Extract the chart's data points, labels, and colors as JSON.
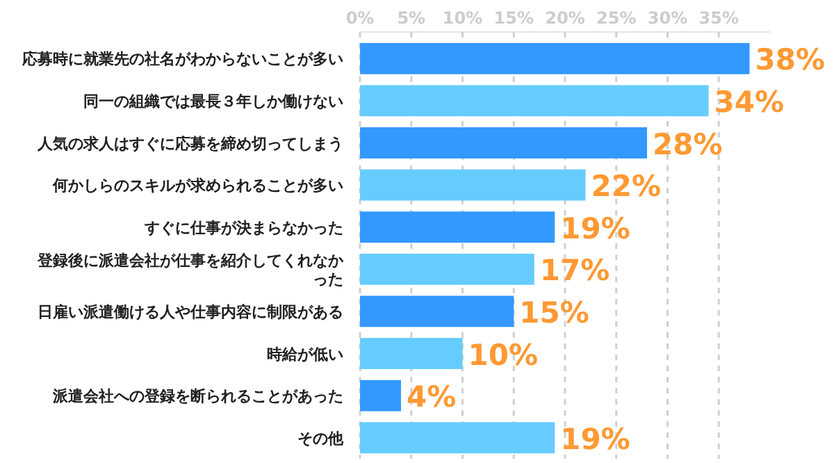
{
  "chart_data": {
    "type": "bar",
    "orientation": "horizontal",
    "categories": [
      "応募時に就業先の社名がわからないことが多い",
      "同一の組織では最長３年しか働けない",
      "人気の求人はすぐに応募を締め切ってしまう",
      "何かしらのスキルが求められることが多い",
      "すぐに仕事が決まらなかった",
      "登録後に派遣会社が仕事を紹介してくれなかった",
      "日雇い派遣働ける人や仕事内容に制限がある",
      "時給が低い",
      "派遣会社への登録を断られることがあった",
      "その他"
    ],
    "values": [
      38,
      34,
      28,
      22,
      19,
      17,
      15,
      10,
      4,
      19
    ],
    "colors": [
      "#3399ff",
      "#66ccff",
      "#3399ff",
      "#66ccff",
      "#3399ff",
      "#66ccff",
      "#3399ff",
      "#66ccff",
      "#3399ff",
      "#66ccff"
    ],
    "value_labels": [
      "38%",
      "34%",
      "28%",
      "22%",
      "19%",
      "17%",
      "15%",
      "10%",
      "4%",
      "19%"
    ],
    "xlim": [
      0,
      40
    ],
    "xticks": [
      {
        "value": 0,
        "label": "0%"
      },
      {
        "value": 5,
        "label": "5%"
      },
      {
        "value": 10,
        "label": "10%"
      },
      {
        "value": 15,
        "label": "15%"
      },
      {
        "value": 20,
        "label": "20%"
      },
      {
        "value": 25,
        "label": "25%"
      },
      {
        "value": 30,
        "label": "30%"
      },
      {
        "value": 35,
        "label": "35%"
      }
    ],
    "grid": "x"
  }
}
